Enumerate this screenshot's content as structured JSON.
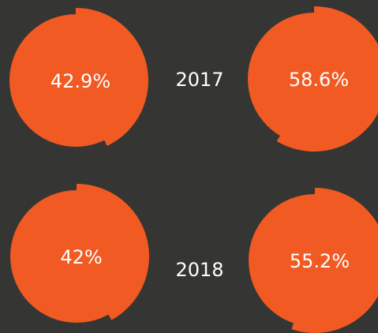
{
  "panels": [
    {
      "year": "2017",
      "values": [
        42.9,
        58.6
      ],
      "value_labels": [
        "42.9%",
        "58.6%"
      ]
    },
    {
      "year": "2018",
      "values": [
        42,
        55.2
      ],
      "value_labels": [
        "42%",
        "55.2%"
      ]
    }
  ]
}
